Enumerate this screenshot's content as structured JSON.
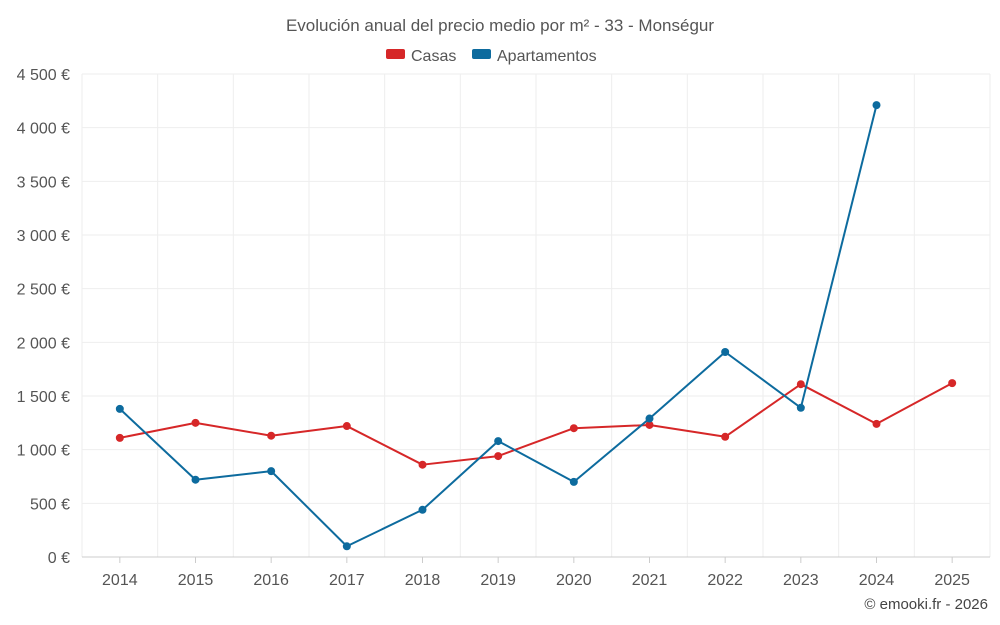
{
  "chart_data": {
    "type": "line",
    "title": "Evolución anual del precio medio por m² - 33 - Monségur",
    "categories": [
      "2014",
      "2015",
      "2016",
      "2017",
      "2018",
      "2019",
      "2020",
      "2021",
      "2022",
      "2023",
      "2024",
      "2025"
    ],
    "series": [
      {
        "name": "Casas",
        "color": "#d62728",
        "values": [
          1110,
          1250,
          1130,
          1220,
          860,
          940,
          1200,
          1230,
          1120,
          1610,
          1240,
          1620
        ]
      },
      {
        "name": "Apartamentos",
        "color": "#0d6b9e",
        "values": [
          1380,
          720,
          800,
          100,
          440,
          1080,
          700,
          1290,
          1910,
          1390,
          4210,
          null
        ]
      }
    ],
    "y_ticks": [
      "0 €",
      "500 €",
      "1 000 €",
      "1 500 €",
      "2 000 €",
      "2 500 €",
      "3 000 €",
      "3 500 €",
      "4 000 €",
      "4 500 €"
    ],
    "y_tick_values": [
      0,
      500,
      1000,
      1500,
      2000,
      2500,
      3000,
      3500,
      4000,
      4500
    ],
    "ylim": [
      0,
      4500
    ],
    "xlabel": "",
    "ylabel": "",
    "legend_position": "top-center",
    "grid": true
  },
  "credit": "© emooki.fr - 2026"
}
